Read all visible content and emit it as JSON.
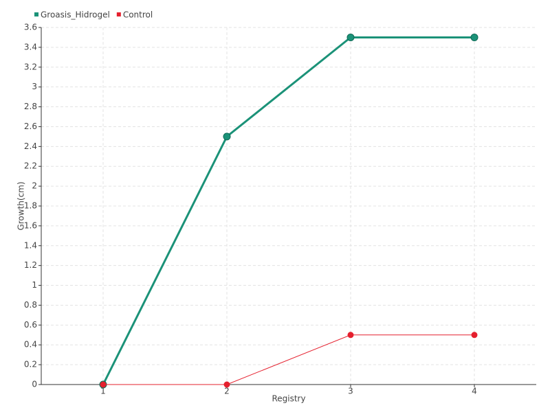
{
  "chart_data": {
    "type": "line",
    "x_label": "Registry",
    "y_label": "Growth(cm)",
    "categories": [
      "1",
      "2",
      "3",
      "4"
    ],
    "series": [
      {
        "name": "Groasis_Hidrogel",
        "color": "#1b9278",
        "values": [
          0,
          2.5,
          3.5,
          3.5
        ]
      },
      {
        "name": "Control",
        "color": "#e5202e",
        "values": [
          0,
          0,
          0.5,
          0.5
        ]
      }
    ],
    "ylim": [
      0,
      3.6
    ],
    "yticks": [
      0,
      0.2,
      0.4,
      0.6,
      0.8,
      1,
      1.2,
      1.4,
      1.6,
      1.8,
      2,
      2.2,
      2.4,
      2.6,
      2.8,
      3,
      3.2,
      3.4,
      3.6
    ],
    "grid": true,
    "legend": "top-left"
  }
}
